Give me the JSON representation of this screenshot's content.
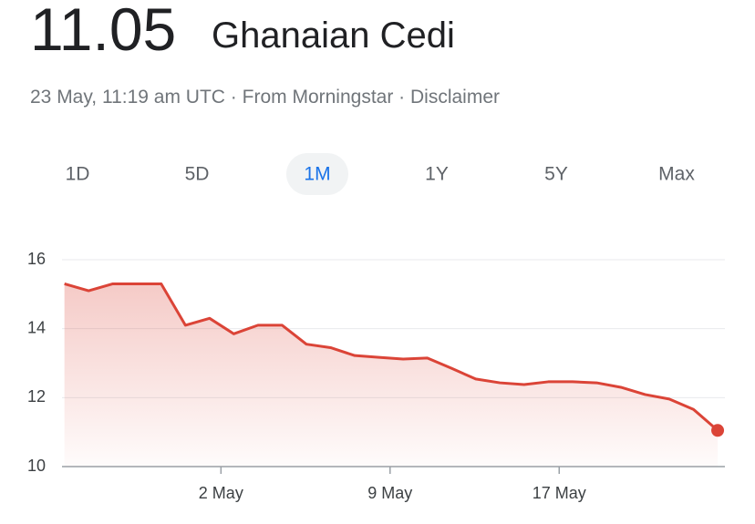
{
  "header": {
    "value": "11.05",
    "currency": "Ghanaian Cedi",
    "meta": "23 May, 11:19 am UTC · From Morningstar · Disclaimer"
  },
  "tabs": [
    "1D",
    "5D",
    "1M",
    "1Y",
    "5Y",
    "Max"
  ],
  "selected_tab": 2,
  "chart_data": {
    "type": "line",
    "color": "#db4437",
    "x": [
      0,
      1,
      2,
      3,
      4,
      5,
      6,
      7,
      8,
      9,
      10,
      11,
      12,
      13,
      14,
      15,
      16,
      17,
      18,
      19,
      20,
      21,
      22,
      23,
      24,
      25,
      26,
      27
    ],
    "values": [
      15.3,
      15.1,
      15.3,
      15.3,
      15.3,
      14.1,
      14.3,
      13.85,
      14.1,
      14.1,
      13.55,
      13.45,
      13.22,
      13.17,
      13.12,
      13.15,
      12.85,
      12.54,
      12.43,
      12.38,
      12.46,
      12.46,
      12.43,
      12.3,
      12.09,
      11.96,
      11.66,
      11.05
    ],
    "xlim": [
      -0.1,
      27.3
    ],
    "xticks": [
      {
        "value": 6.47,
        "label": "2 May"
      },
      {
        "value": 13.46,
        "label": "9 May"
      },
      {
        "value": 20.45,
        "label": "17 May"
      }
    ],
    "ylim": [
      10,
      16
    ],
    "yticks": [
      10,
      12,
      14,
      16
    ],
    "grid": true
  }
}
